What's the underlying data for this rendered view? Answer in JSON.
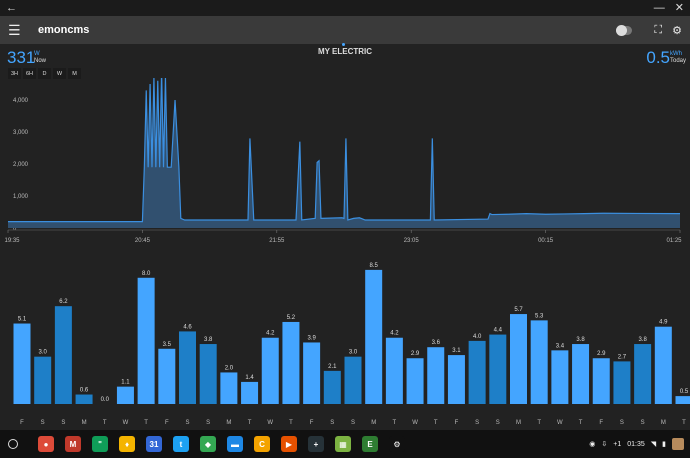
{
  "app": {
    "title": "emoncms"
  },
  "header": {
    "now_value": "331",
    "now_unit": "W",
    "now_label": "Now",
    "page_title": "MY ELECTRIC",
    "today_value": "0.5",
    "today_unit": "kWh",
    "today_label": "Today"
  },
  "ranges": [
    "3H",
    "6H",
    "D",
    "W",
    "M"
  ],
  "colors": {
    "accent": "#44a5ff",
    "bar_light": "#44a5ff",
    "bar_dark": "#1e7fc8",
    "line": "#3b8fe0",
    "fill": "#31506f"
  },
  "power_chart": {
    "y_ticks": [
      "4,000",
      "3,000",
      "2,000",
      "1,000",
      "0"
    ],
    "x_ticks": [
      "19:35",
      "20:45",
      "21:55",
      "23:05",
      "00:15",
      "01:25"
    ]
  },
  "chart_data": [
    {
      "type": "area",
      "title": "",
      "xlabel": "",
      "ylabel": "",
      "x_tick_labels": [
        "19:35",
        "20:45",
        "21:55",
        "23:05",
        "00:15",
        "01:25"
      ],
      "y_tick_labels": [
        "4,000",
        "3,000",
        "2,000",
        "1,000",
        "0"
      ],
      "ylim": [
        0,
        4500
      ],
      "series": [
        {
          "x_min": [
            0,
            70,
            71,
            72,
            73,
            74,
            75,
            76,
            77,
            78,
            79,
            80,
            81,
            82,
            83,
            85,
            87,
            89,
            90,
            92,
            110,
            125,
            126,
            128,
            135,
            150,
            152,
            153,
            160,
            161,
            162,
            163,
            174,
            175,
            176,
            177,
            180,
            183,
            184,
            186,
            220,
            221,
            222,
            250,
            251,
            252,
            260,
            270,
            280,
            290,
            300,
            310,
            350
          ],
          "values": [
            200,
            200,
            1900,
            4300,
            1900,
            4500,
            1900,
            4700,
            1900,
            4600,
            1900,
            4900,
            1900,
            4700,
            1900,
            1900,
            4000,
            1900,
            300,
            250,
            250,
            250,
            2800,
            250,
            250,
            250,
            2700,
            250,
            300,
            2050,
            2100,
            300,
            320,
            300,
            2800,
            250,
            300,
            320,
            300,
            250,
            250,
            2800,
            250,
            280,
            450,
            420,
            430,
            450,
            430,
            440,
            450,
            460,
            450
          ]
        }
      ]
    },
    {
      "type": "bar",
      "title": "",
      "xlabel": "",
      "ylabel": "",
      "ylim": [
        0,
        9
      ],
      "categories": [
        "F",
        "S",
        "S",
        "M",
        "T",
        "W",
        "T",
        "F",
        "S",
        "S",
        "M",
        "T",
        "W",
        "T",
        "F",
        "S",
        "S",
        "M",
        "T",
        "W",
        "T",
        "F",
        "S",
        "S",
        "M",
        "T",
        "W",
        "T",
        "F",
        "S",
        "S",
        "M",
        "T"
      ],
      "values": [
        5.1,
        3.0,
        6.2,
        0.6,
        0.0,
        1.1,
        8.0,
        3.5,
        4.6,
        3.8,
        2.0,
        1.4,
        4.2,
        5.2,
        3.9,
        2.1,
        3.0,
        8.5,
        4.2,
        2.9,
        3.6,
        3.1,
        4.0,
        4.4,
        5.7,
        5.3,
        3.4,
        3.8,
        2.9,
        2.7,
        3.8,
        4.9,
        0.5
      ],
      "labels": [
        "5.1",
        "3.0",
        "6.2",
        "0.6",
        "0.0",
        "1.1",
        "8.0",
        "3.5",
        "4.6",
        "3.8",
        "2.0",
        "1.4",
        "4.2",
        "5.2",
        "3.9",
        "2.1",
        "3.0",
        "8.5",
        "4.2",
        "2.9",
        "3.6",
        "3.1",
        "4.0",
        "4.4",
        "5.7",
        "5.3",
        "3.4",
        "3.8",
        "2.9",
        "2.7",
        "3.8",
        "4.9",
        "0.5"
      ],
      "shades": [
        "light",
        "dark",
        "dark",
        "dark",
        "light",
        "light",
        "light",
        "light",
        "dark",
        "dark",
        "light",
        "light",
        "light",
        "light",
        "light",
        "dark",
        "dark",
        "light",
        "light",
        "light",
        "light",
        "light",
        "dark",
        "dark",
        "light",
        "light",
        "light",
        "light",
        "light",
        "dark",
        "dark",
        "light",
        "light"
      ]
    }
  ],
  "shelf": {
    "apps": [
      {
        "name": "chrome-icon",
        "color": "#dd4b39",
        "glyph": "●"
      },
      {
        "name": "gmail-icon",
        "color": "#c0392b",
        "glyph": "M"
      },
      {
        "name": "hangouts-icon",
        "color": "#0f9d58",
        "glyph": "\""
      },
      {
        "name": "keep-icon",
        "color": "#f4b400",
        "glyph": "♦"
      },
      {
        "name": "calendar-icon",
        "color": "#3367d6",
        "glyph": "31"
      },
      {
        "name": "twitter-icon",
        "color": "#1da1f2",
        "glyph": "t"
      },
      {
        "name": "maps-icon",
        "color": "#34a853",
        "glyph": "◆"
      },
      {
        "name": "files-icon",
        "color": "#1e88e5",
        "glyph": "▬"
      },
      {
        "name": "c-app-icon",
        "color": "#f4a300",
        "glyph": "C"
      },
      {
        "name": "play-store-icon",
        "color": "#e65100",
        "glyph": "▶"
      },
      {
        "name": "terminal-icon",
        "color": "#263238",
        "glyph": "+"
      },
      {
        "name": "android-app-icon",
        "color": "#7cb342",
        "glyph": "▦"
      },
      {
        "name": "evernote-icon",
        "color": "#2e7d32",
        "glyph": "E"
      },
      {
        "name": "settings-shelf-icon",
        "color": "#111111",
        "glyph": "⚙"
      }
    ],
    "tray": {
      "plus": "+1",
      "time": "01:35"
    }
  }
}
